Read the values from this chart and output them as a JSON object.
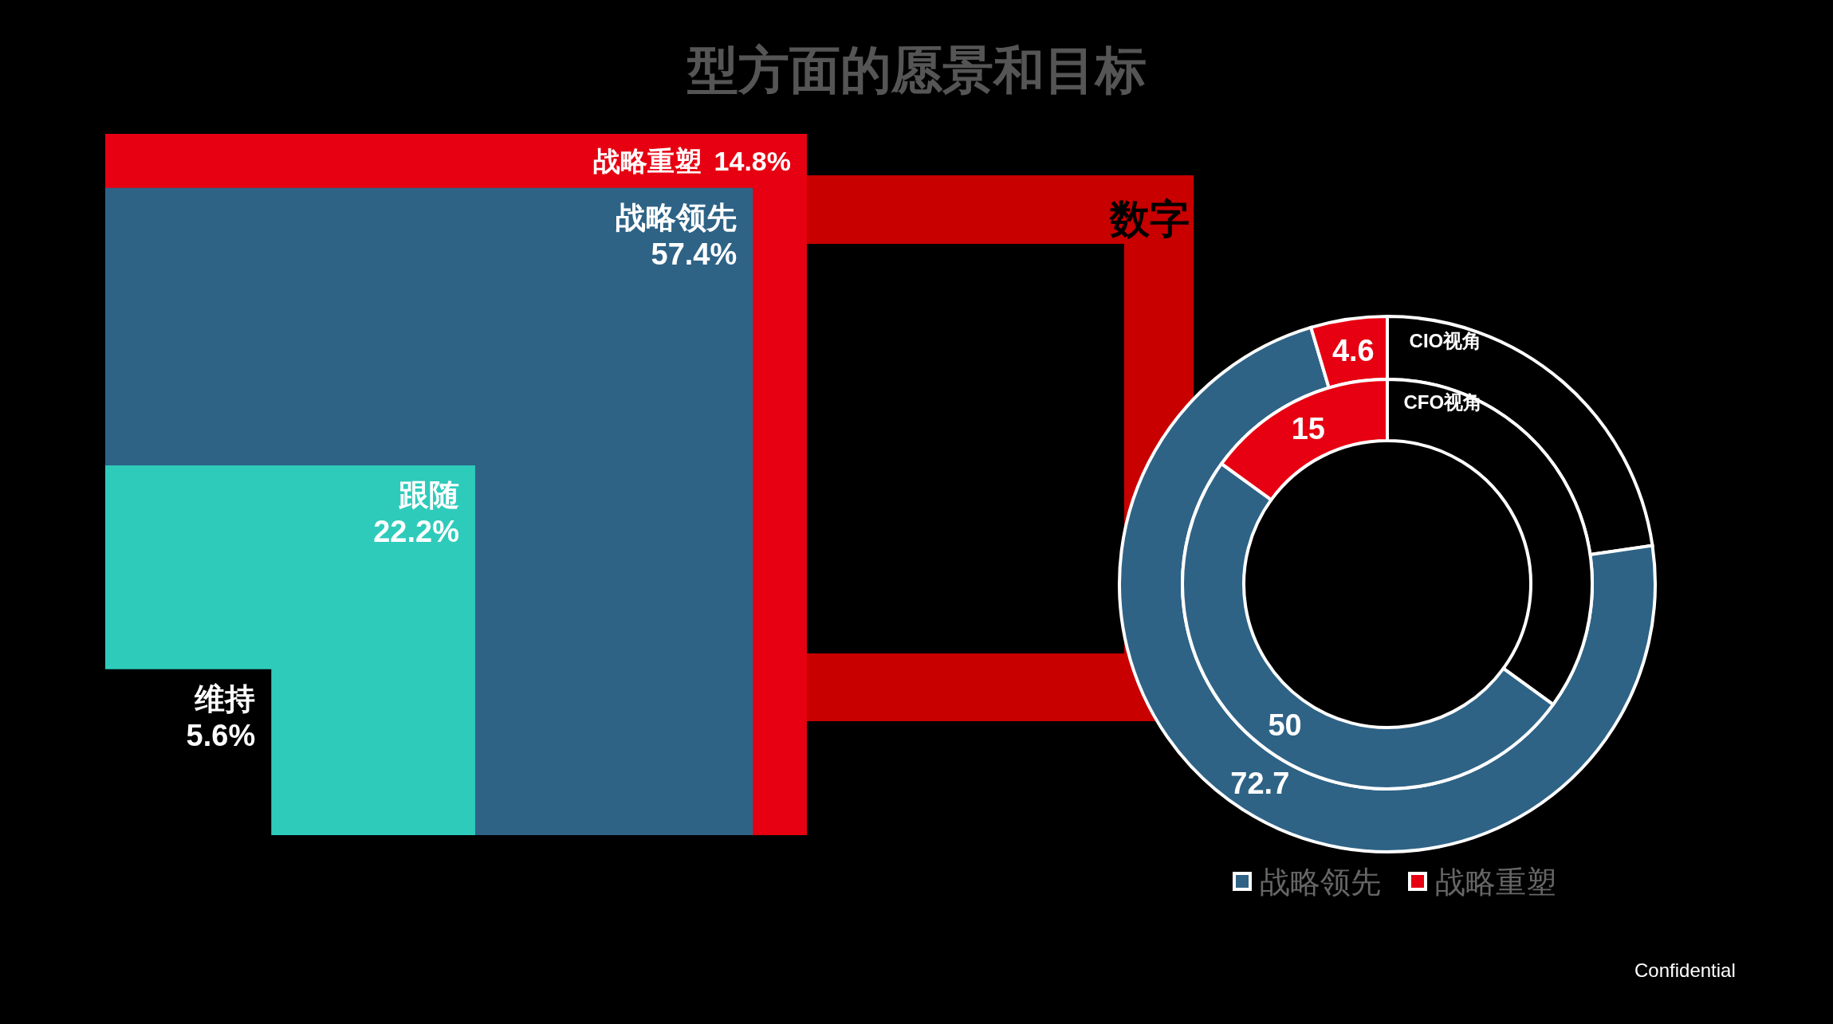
{
  "chart_data": [
    {
      "type": "other",
      "categories": [
        "维持",
        "跟随",
        "战略领先",
        "战略重塑"
      ],
      "values": [
        5.6,
        22.2,
        57.4,
        14.8
      ],
      "value_labels": [
        "5.6%",
        "22.2%",
        "57.4%",
        "14.8%"
      ],
      "colors": [
        "#000000",
        "#2ecbbb",
        "#2e6386",
        "#e60012"
      ],
      "annotations": [
        "数字",
        "型方面的愿景和目标"
      ]
    },
    {
      "type": "donut",
      "categories": [
        "战略领先",
        "战略重塑",
        null
      ],
      "legend": "bottom",
      "series": [
        {
          "name": "CIO视角",
          "values": [
            72.7,
            4.6,
            22.7
          ],
          "colors": [
            "#2e6386",
            "#e60012",
            "#000000"
          ],
          "value_labels": [
            "72.7",
            "4.6",
            null
          ]
        },
        {
          "name": "CFO视角",
          "values": [
            50,
            15,
            35
          ],
          "colors": [
            "#2e6386",
            "#e60012",
            "#000000"
          ],
          "value_labels": [
            "50",
            "15",
            null
          ]
        }
      ],
      "annotations": [
        "Confidential"
      ]
    }
  ]
}
